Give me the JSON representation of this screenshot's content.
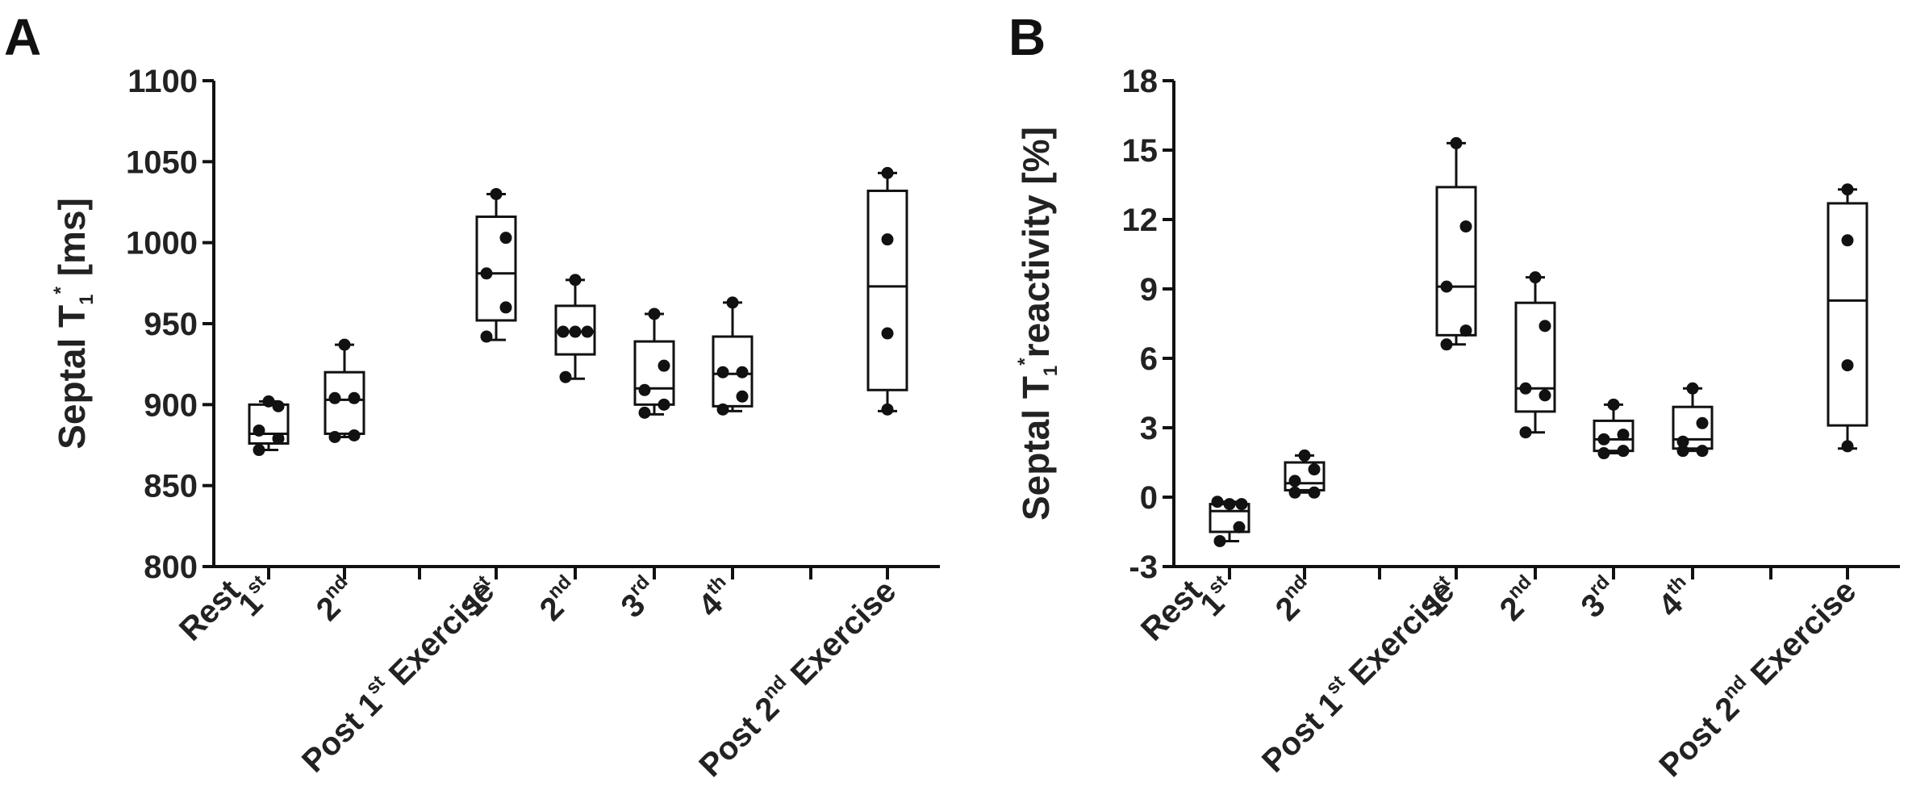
{
  "chart_data": [
    {
      "type": "box",
      "panel_label": "A",
      "ylabel": {
        "main": "Septal T",
        "sub": "1",
        "sup": "*",
        "tail": " [ms]"
      },
      "ylim": [
        800,
        1100
      ],
      "yticks": [
        "800",
        "850",
        "900",
        "950",
        "1000",
        "1050",
        "1100"
      ],
      "group_labels": {
        "rest": "Rest",
        "post1": {
          "pre": "Post 1",
          "sup": "st",
          "post": " Exercise"
        },
        "post2": {
          "pre": "Post 2",
          "sup": "nd",
          "post": " Exercise"
        }
      },
      "boxes": [
        {
          "label": "1",
          "sup": "st",
          "min": 872,
          "q1": 876,
          "median": 882,
          "q3": 900,
          "max": 902,
          "points": [
            902,
            899,
            884,
            879,
            872
          ]
        },
        {
          "label": "2",
          "sup": "nd",
          "min": 880,
          "q1": 882,
          "median": 903,
          "q3": 920,
          "max": 937,
          "points": [
            937,
            904,
            904,
            881,
            880
          ]
        },
        {
          "label": "1",
          "sup": "st",
          "min": 940,
          "q1": 952,
          "median": 981,
          "q3": 1016,
          "max": 1030,
          "points": [
            1030,
            1003,
            981,
            960,
            942
          ]
        },
        {
          "label": "2",
          "sup": "nd",
          "min": 916,
          "q1": 931,
          "median": 945,
          "q3": 961,
          "max": 977,
          "points": [
            977,
            945,
            945,
            945,
            917
          ]
        },
        {
          "label": "3",
          "sup": "rd",
          "min": 894,
          "q1": 900,
          "median": 910,
          "q3": 939,
          "max": 956,
          "points": [
            956,
            924,
            909,
            900,
            895
          ]
        },
        {
          "label": "4",
          "sup": "th",
          "min": 896,
          "q1": 899,
          "median": 919,
          "q3": 942,
          "max": 963,
          "points": [
            963,
            920,
            920,
            905,
            897
          ]
        },
        {
          "label": "",
          "sup": "",
          "min": 896,
          "q1": 909,
          "median": 973,
          "q3": 1032,
          "max": 1043,
          "points": [
            1043,
            1002,
            944,
            897
          ]
        }
      ]
    },
    {
      "type": "box",
      "panel_label": "B",
      "ylabel": {
        "main": "Septal T",
        "sub": "1",
        "sup": "*",
        "tail": "reactivity [%]"
      },
      "ylim": [
        -3,
        18
      ],
      "yticks": [
        "-3",
        "0",
        "3",
        "6",
        "9",
        "12",
        "15",
        "18"
      ],
      "group_labels": {
        "rest": "Rest",
        "post1": {
          "pre": "Post 1",
          "sup": "st",
          "post": " Exercise"
        },
        "post2": {
          "pre": "Post 2",
          "sup": "nd",
          "post": " Exercise"
        }
      },
      "boxes": [
        {
          "label": "1",
          "sup": "st",
          "min": -1.9,
          "q1": -1.5,
          "median": -0.6,
          "q3": -0.3,
          "max": -0.2,
          "points": [
            -0.2,
            -0.3,
            -0.3,
            -1.3,
            -1.9
          ]
        },
        {
          "label": "2",
          "sup": "nd",
          "min": 0.2,
          "q1": 0.3,
          "median": 0.6,
          "q3": 1.5,
          "max": 1.8,
          "points": [
            1.8,
            1.2,
            0.7,
            0.2,
            0.2
          ]
        },
        {
          "label": "1",
          "sup": "st",
          "min": 6.6,
          "q1": 7.0,
          "median": 9.1,
          "q3": 13.4,
          "max": 15.3,
          "points": [
            15.3,
            11.7,
            9.1,
            7.2,
            6.6
          ]
        },
        {
          "label": "2",
          "sup": "nd",
          "min": 2.8,
          "q1": 3.7,
          "median": 4.7,
          "q3": 8.4,
          "max": 9.5,
          "points": [
            9.5,
            7.4,
            4.7,
            4.4,
            2.8
          ]
        },
        {
          "label": "3",
          "sup": "rd",
          "min": 1.9,
          "q1": 2.0,
          "median": 2.5,
          "q3": 3.3,
          "max": 4.0,
          "points": [
            4.0,
            2.7,
            2.5,
            2.0,
            1.9
          ]
        },
        {
          "label": "4",
          "sup": "th",
          "min": 2.0,
          "q1": 2.1,
          "median": 2.5,
          "q3": 3.9,
          "max": 4.7,
          "points": [
            4.7,
            3.2,
            2.4,
            2.0,
            2.0
          ]
        },
        {
          "label": "",
          "sup": "",
          "min": 2.1,
          "q1": 3.1,
          "median": 8.5,
          "q3": 12.7,
          "max": 13.3,
          "points": [
            13.3,
            11.1,
            5.7,
            2.2
          ]
        }
      ]
    }
  ],
  "colors": {
    "ink": "#111111",
    "box_fill": "#ffffff"
  }
}
